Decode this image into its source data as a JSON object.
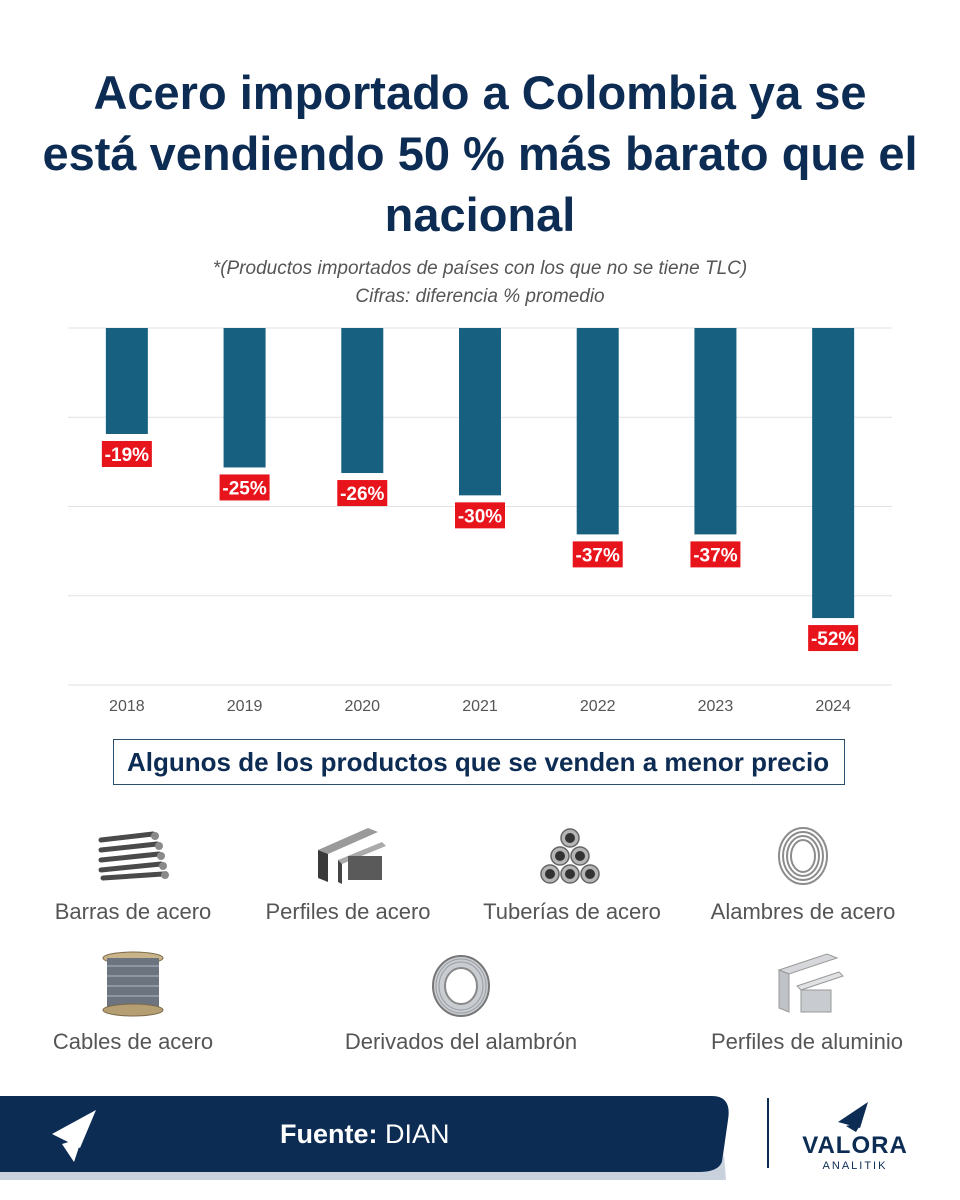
{
  "header": {
    "title": "Acero importado a Colombia ya se está vendiendo 50 % más barato que el nacional",
    "subtitle_1": "*(Productos importados de países con los que no se tiene TLC)",
    "subtitle_2": "Cifras: diferencia % promedio"
  },
  "chart_data": {
    "type": "bar",
    "categories": [
      "2018",
      "2019",
      "2020",
      "2021",
      "2022",
      "2023",
      "2024"
    ],
    "values": [
      -19,
      -25,
      -26,
      -30,
      -37,
      -37,
      -52
    ],
    "data_labels": [
      "-19%",
      "-25%",
      "-26%",
      "-30%",
      "-37%",
      "-37%",
      "-52%"
    ],
    "ylim": [
      -64,
      0
    ],
    "grid": true,
    "bar_color": "#17607f",
    "label_color": "#e8141c"
  },
  "products": {
    "heading": "Algunos de los productos que se venden a menor precio",
    "items": [
      {
        "label": "Barras de acero",
        "icon": "steel-bars-icon"
      },
      {
        "label": "Perfiles de acero",
        "icon": "steel-profiles-icon"
      },
      {
        "label": "Tuberías de acero",
        "icon": "steel-pipes-icon"
      },
      {
        "label": "Alambres de acero",
        "icon": "wire-coil-icon"
      },
      {
        "label": "Cables de acero",
        "icon": "cable-spool-icon"
      },
      {
        "label": "Derivados del alambrón",
        "icon": "wire-rod-coil-icon"
      },
      {
        "label": "Perfiles de aluminio",
        "icon": "aluminum-profiles-icon"
      }
    ]
  },
  "footer": {
    "source_label": "Fuente:",
    "source_value": "DIAN",
    "brand_name": "VALORA",
    "brand_sub": "ANALITIK",
    "band_color": "#0d2c54"
  }
}
